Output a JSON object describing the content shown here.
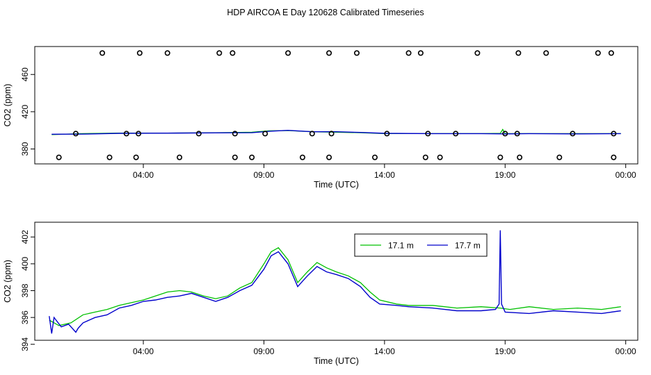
{
  "title": "HDP AIRCOA E  Day 120628  Calibrated Timeseries",
  "colors": {
    "series_17_1": "#00c000",
    "series_17_7": "#0000cc",
    "markers": "#000000"
  },
  "chart_data": [
    {
      "type": "line",
      "panel": "top",
      "xlabel": "Time (UTC)",
      "ylabel": "CO2 (ppm)",
      "x_ticks": [
        "04:00",
        "09:00",
        "14:00",
        "19:00",
        "00:00"
      ],
      "x_tick_hours": [
        4,
        9,
        14,
        19,
        24
      ],
      "xlim": [
        -0.5,
        24.5
      ],
      "y_ticks": [
        380,
        420,
        460
      ],
      "ylim": [
        364,
        490
      ],
      "grid": false,
      "series": [
        {
          "values": [
            [
              0.2,
              395.5
            ],
            [
              1.5,
              396.5
            ],
            [
              3,
              397
            ],
            [
              5,
              397
            ],
            [
              7,
              397.5
            ],
            [
              8.5,
              398
            ],
            [
              9.2,
              399.5
            ],
            [
              10,
              399.8
            ],
            [
              11,
              398.5
            ],
            [
              12,
              398
            ],
            [
              13,
              397.5
            ],
            [
              14,
              396.5
            ],
            [
              16,
              396.5
            ],
            [
              18,
              396.5
            ],
            [
              18.8,
              396.8
            ],
            [
              18.9,
              401
            ],
            [
              19,
              396.5
            ],
            [
              20,
              396.5
            ],
            [
              22,
              396.5
            ],
            [
              23.8,
              396.5
            ]
          ]
        },
        {
          "values": [
            [
              0.2,
              395.8
            ],
            [
              1.5,
              396
            ],
            [
              3,
              396.8
            ],
            [
              5,
              397
            ],
            [
              7,
              397.3
            ],
            [
              8.5,
              397.5
            ],
            [
              9.2,
              399
            ],
            [
              10,
              400
            ],
            [
              11,
              398.5
            ],
            [
              12,
              398.5
            ],
            [
              13,
              397.8
            ],
            [
              14,
              396.8
            ],
            [
              16,
              396.5
            ],
            [
              18,
              396.5
            ],
            [
              19,
              396.2
            ],
            [
              20,
              396.5
            ],
            [
              22,
              396.2
            ],
            [
              23.8,
              396.5
            ]
          ]
        }
      ],
      "high_markers_x": [
        2.3,
        3.85,
        5.0,
        7.15,
        7.7,
        10.0,
        11.7,
        12.85,
        15.0,
        15.5,
        17.85,
        19.55,
        20.7,
        22.85,
        23.4
      ],
      "mid_markers_x": [
        1.2,
        3.3,
        3.8,
        6.3,
        7.8,
        9.05,
        11.0,
        11.8,
        14.1,
        15.8,
        16.95,
        19.0,
        19.5,
        21.8,
        23.5
      ],
      "low_markers_x": [
        0.5,
        2.6,
        3.7,
        5.5,
        7.8,
        8.5,
        10.6,
        11.7,
        13.6,
        15.7,
        16.3,
        18.8,
        19.6,
        21.25,
        23.5
      ],
      "high_marker_y": 483,
      "mid_marker_y": 396.5,
      "low_marker_y": 371
    },
    {
      "type": "line",
      "panel": "bottom",
      "xlabel": "Time (UTC)",
      "ylabel": "CO2 (ppm)",
      "x_ticks": [
        "04:00",
        "09:00",
        "14:00",
        "19:00",
        "00:00"
      ],
      "x_tick_hours": [
        4,
        9,
        14,
        19,
        24
      ],
      "xlim": [
        -0.5,
        24.5
      ],
      "y_ticks": [
        394,
        396,
        398,
        400,
        402
      ],
      "ylim": [
        394.3,
        403.1
      ],
      "grid": false,
      "legend": {
        "placement": "top-right",
        "entries": [
          "17.1 m",
          "17.7 m"
        ]
      },
      "series": [
        {
          "name": "17.1 m",
          "values": [
            [
              0.1,
              395.8
            ],
            [
              0.5,
              395.4
            ],
            [
              1,
              395.6
            ],
            [
              1.5,
              396.2
            ],
            [
              2,
              396.4
            ],
            [
              2.5,
              396.6
            ],
            [
              3,
              396.9
            ],
            [
              3.5,
              397.1
            ],
            [
              4,
              397.3
            ],
            [
              4.5,
              397.6
            ],
            [
              5,
              397.9
            ],
            [
              5.5,
              398.0
            ],
            [
              6,
              397.9
            ],
            [
              6.5,
              397.6
            ],
            [
              7,
              397.4
            ],
            [
              7.5,
              397.6
            ],
            [
              8,
              398.2
            ],
            [
              8.5,
              398.6
            ],
            [
              9,
              400.0
            ],
            [
              9.3,
              400.9
            ],
            [
              9.6,
              401.2
            ],
            [
              10,
              400.3
            ],
            [
              10.4,
              398.6
            ],
            [
              10.8,
              399.4
            ],
            [
              11.2,
              400.1
            ],
            [
              11.6,
              399.7
            ],
            [
              12,
              399.4
            ],
            [
              12.5,
              399.1
            ],
            [
              13,
              398.6
            ],
            [
              13.4,
              397.9
            ],
            [
              13.8,
              397.3
            ],
            [
              14.5,
              397.0
            ],
            [
              15,
              396.9
            ],
            [
              16,
              396.9
            ],
            [
              17,
              396.7
            ],
            [
              18,
              396.8
            ],
            [
              18.8,
              396.7
            ],
            [
              19.2,
              396.6
            ],
            [
              20,
              396.8
            ],
            [
              21,
              396.6
            ],
            [
              22,
              396.7
            ],
            [
              23,
              396.6
            ],
            [
              23.8,
              396.8
            ]
          ]
        },
        {
          "name": "17.7 m",
          "values": [
            [
              0.1,
              396.1
            ],
            [
              0.2,
              394.8
            ],
            [
              0.3,
              396.0
            ],
            [
              0.6,
              395.3
            ],
            [
              0.9,
              395.5
            ],
            [
              1.2,
              394.9
            ],
            [
              1.3,
              395.2
            ],
            [
              1.5,
              395.6
            ],
            [
              2,
              396.0
            ],
            [
              2.5,
              396.2
            ],
            [
              3,
              396.7
            ],
            [
              3.5,
              396.9
            ],
            [
              4,
              397.2
            ],
            [
              4.5,
              397.3
            ],
            [
              5,
              397.5
            ],
            [
              5.5,
              397.6
            ],
            [
              6,
              397.8
            ],
            [
              6.5,
              397.5
            ],
            [
              7,
              397.2
            ],
            [
              7.5,
              397.5
            ],
            [
              8,
              398.0
            ],
            [
              8.5,
              398.4
            ],
            [
              9,
              399.6
            ],
            [
              9.3,
              400.6
            ],
            [
              9.6,
              400.9
            ],
            [
              10,
              400.0
            ],
            [
              10.4,
              398.3
            ],
            [
              10.8,
              399.1
            ],
            [
              11.2,
              399.8
            ],
            [
              11.6,
              399.4
            ],
            [
              12,
              399.2
            ],
            [
              12.5,
              398.9
            ],
            [
              13,
              398.3
            ],
            [
              13.4,
              397.5
            ],
            [
              13.8,
              397.0
            ],
            [
              14.5,
              396.9
            ],
            [
              15,
              396.8
            ],
            [
              16,
              396.7
            ],
            [
              17,
              396.5
            ],
            [
              18,
              396.5
            ],
            [
              18.6,
              396.6
            ],
            [
              18.75,
              397.0
            ],
            [
              18.8,
              402.5
            ],
            [
              18.85,
              397.0
            ],
            [
              19,
              396.4
            ],
            [
              20,
              396.3
            ],
            [
              21,
              396.5
            ],
            [
              22,
              396.4
            ],
            [
              23,
              396.3
            ],
            [
              23.8,
              396.5
            ]
          ]
        }
      ]
    }
  ]
}
